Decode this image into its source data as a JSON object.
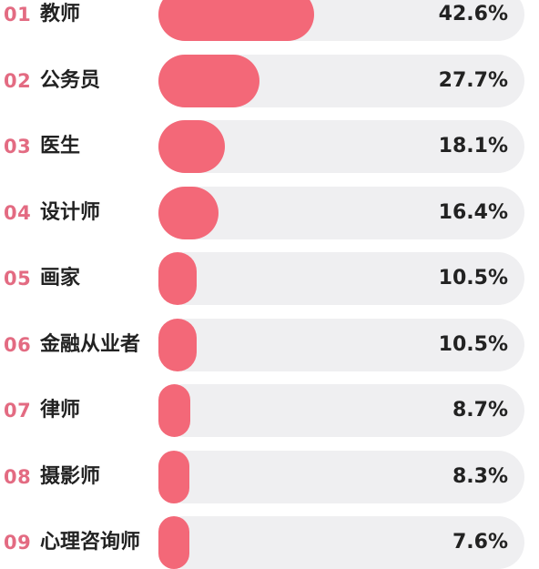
{
  "chart_data": {
    "type": "bar",
    "orientation": "horizontal",
    "bar_color": "#f36878",
    "track_color": "#efeff1",
    "rank_color": "#e36b82",
    "xlim": [
      0,
      100
    ],
    "items": [
      {
        "rank": "01",
        "label": "教师",
        "value": 42.6,
        "value_label": "42.6%"
      },
      {
        "rank": "02",
        "label": "公务员",
        "value": 27.7,
        "value_label": "27.7%"
      },
      {
        "rank": "03",
        "label": "医生",
        "value": 18.1,
        "value_label": "18.1%"
      },
      {
        "rank": "04",
        "label": "设计师",
        "value": 16.4,
        "value_label": "16.4%"
      },
      {
        "rank": "05",
        "label": "画家",
        "value": 10.5,
        "value_label": "10.5%"
      },
      {
        "rank": "06",
        "label": "金融从业者",
        "value": 10.5,
        "value_label": "10.5%"
      },
      {
        "rank": "07",
        "label": "律师",
        "value": 8.7,
        "value_label": "8.7%"
      },
      {
        "rank": "08",
        "label": "摄影师",
        "value": 8.3,
        "value_label": "8.3%"
      },
      {
        "rank": "09",
        "label": "心理咨询师",
        "value": 7.6,
        "value_label": "7.6%"
      }
    ]
  }
}
